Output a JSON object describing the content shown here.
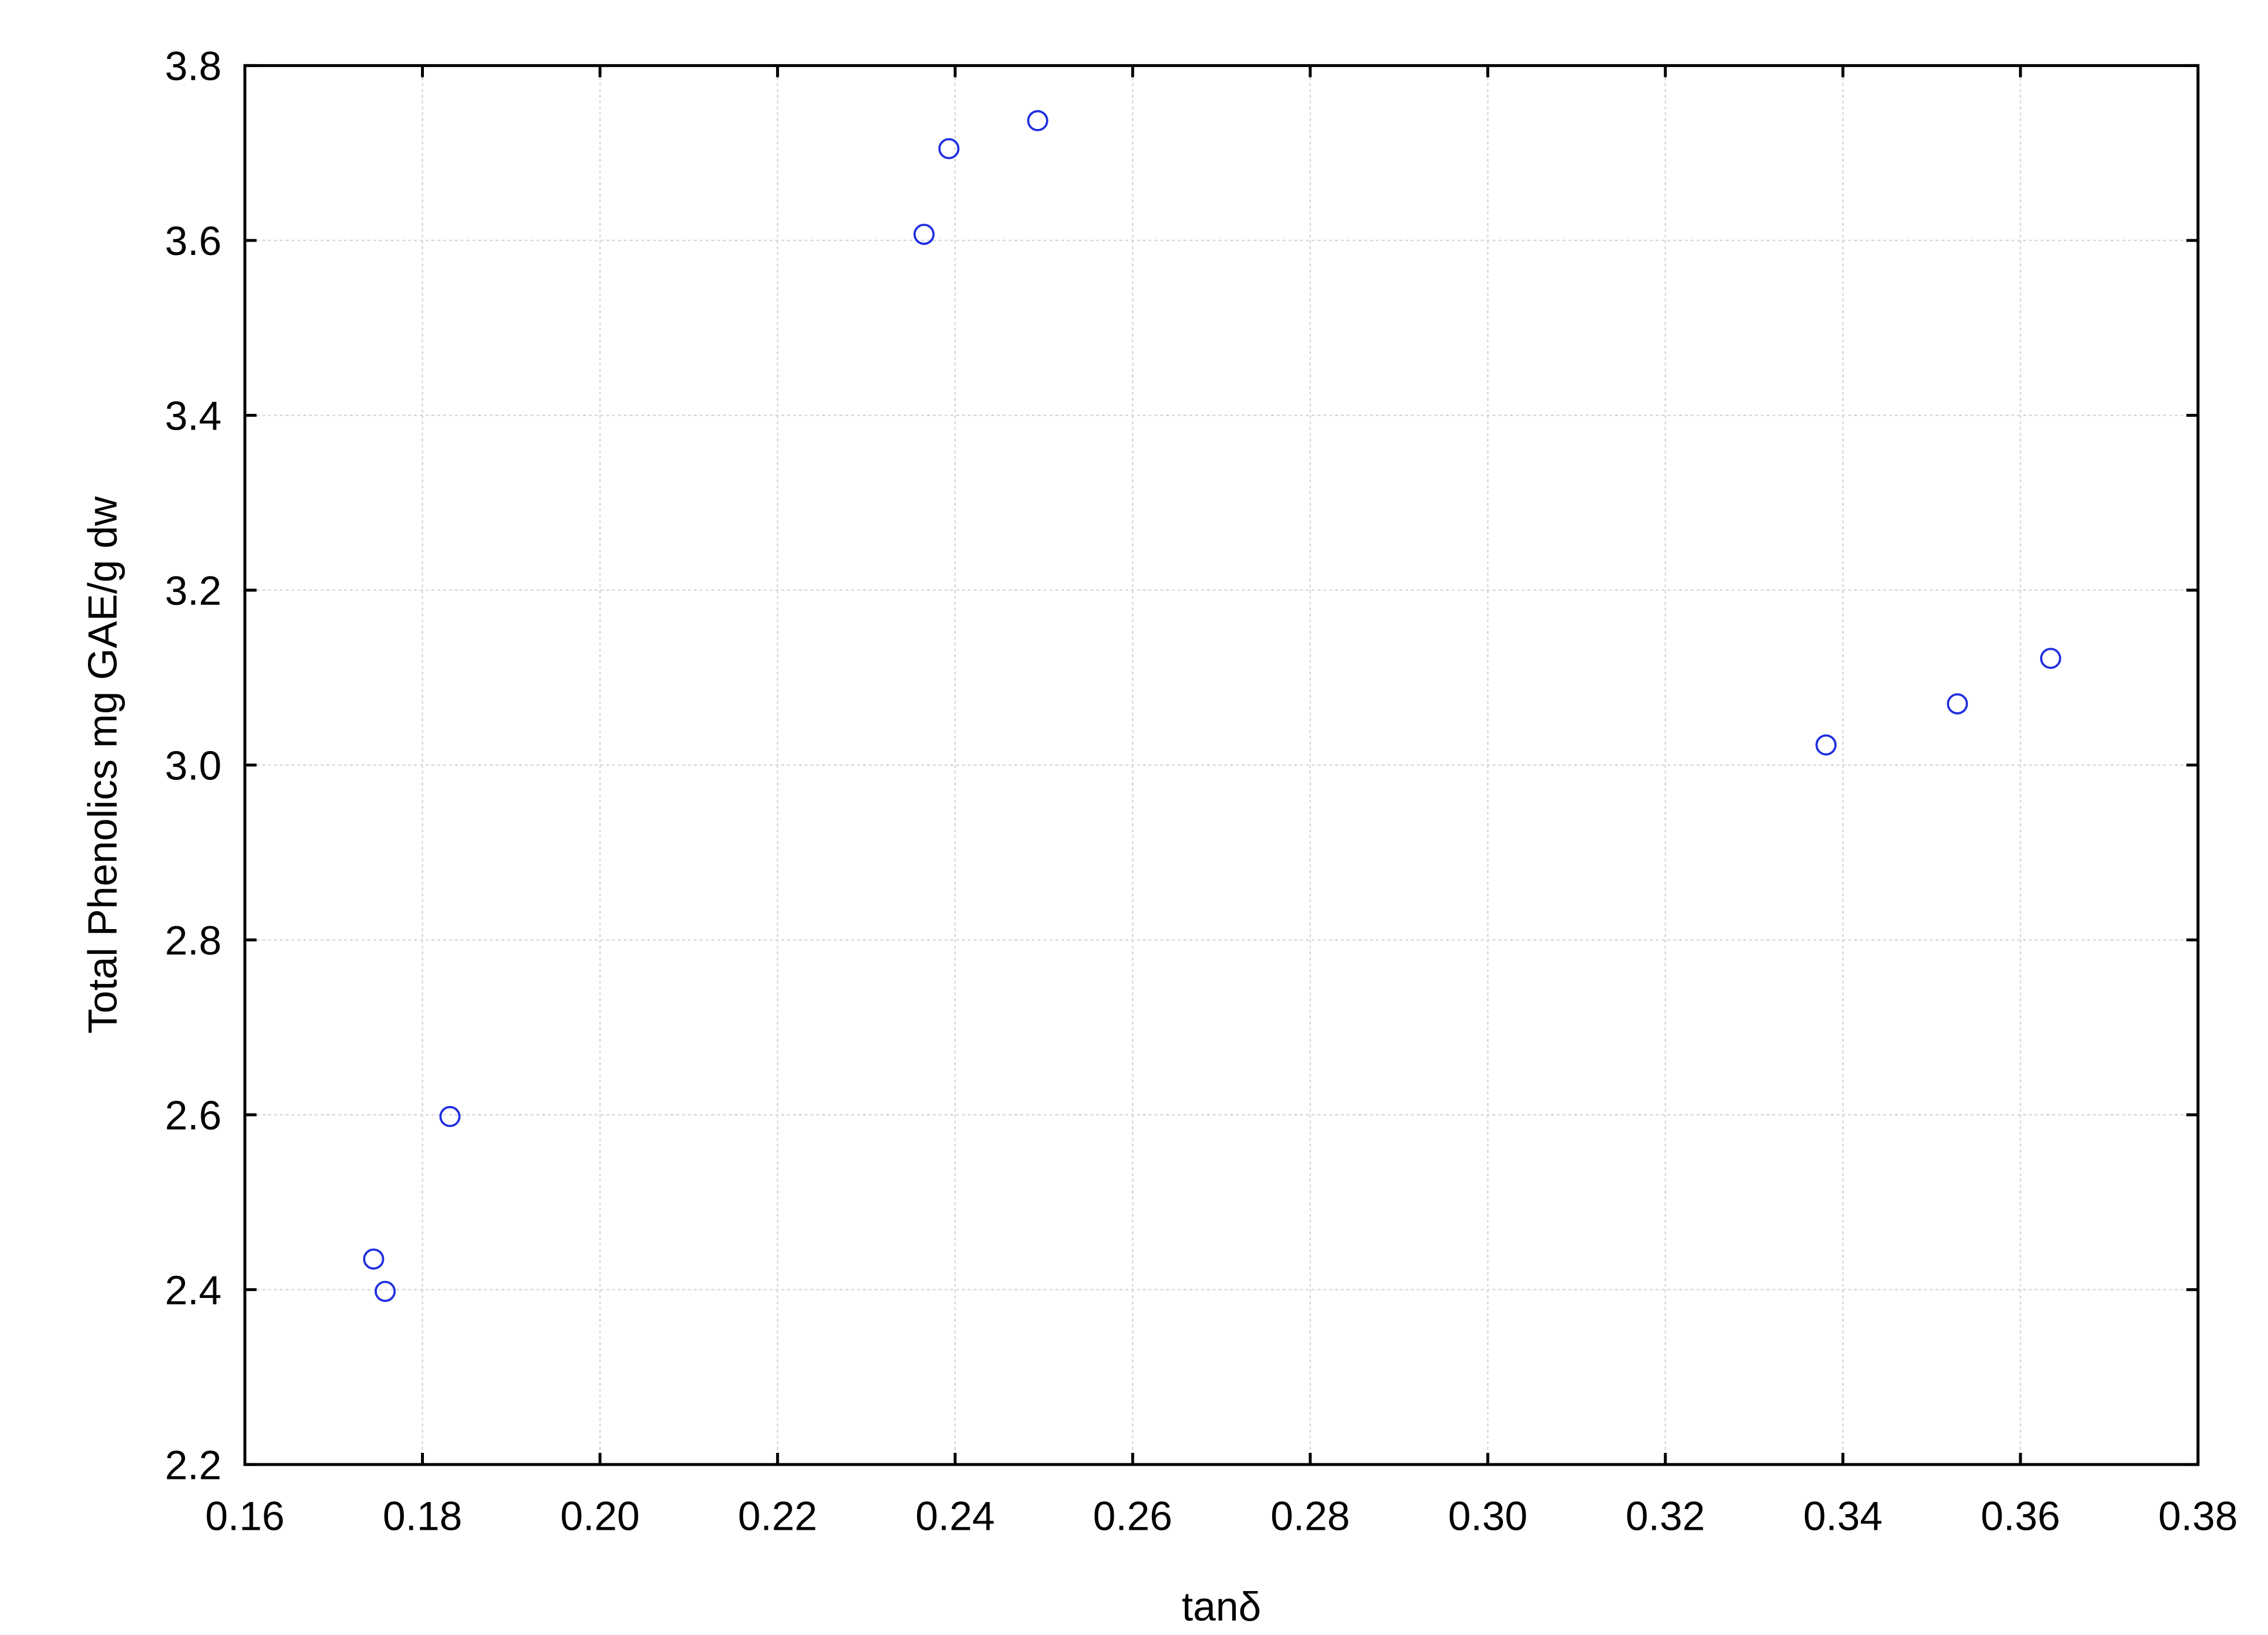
{
  "chart_data": {
    "type": "scatter",
    "x_label": "tanδ",
    "y_label": "Total Phenolics mg GAE/g dw",
    "series": [
      {
        "color": "#1f2fe0",
        "x": [
          0.1745,
          0.1758,
          0.1831,
          0.2365,
          0.2393,
          0.2493,
          0.3381,
          0.3529,
          0.3634
        ],
        "values": [
          2.435,
          2.398,
          2.598,
          3.607,
          3.705,
          3.737,
          3.023,
          3.07,
          3.122
        ]
      }
    ],
    "xlim": [
      0.16,
      0.38
    ],
    "xticks": [
      0.16,
      0.18,
      {
        "value": 0.2,
        "label": "0.20"
      },
      0.22,
      0.24,
      0.26,
      0.28,
      {
        "value": 0.3,
        "label": "0.30"
      },
      0.32,
      0.34,
      0.36,
      0.38
    ],
    "ylim": [
      2.2,
      3.8
    ],
    "yticks": [
      2.2,
      2.4,
      2.6,
      2.8,
      {
        "value": 3,
        "label": "3.0"
      },
      3.2,
      3.4,
      3.6,
      3.8
    ],
    "grid": true
  }
}
